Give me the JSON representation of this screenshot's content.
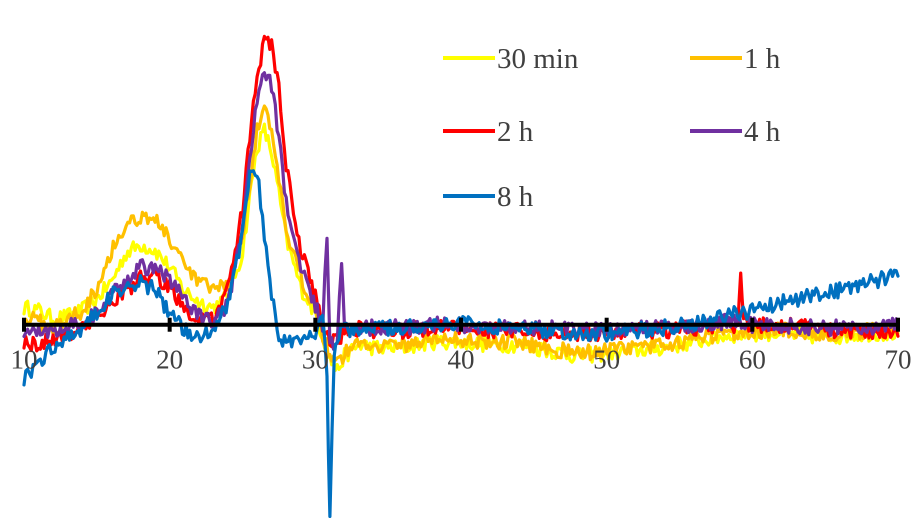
{
  "chart_data": {
    "type": "line",
    "title": "",
    "xlabel": "",
    "ylabel": "",
    "xlim": [
      10,
      70
    ],
    "ylim": [
      -7,
      11
    ],
    "x_ticks": [
      10,
      20,
      30,
      40,
      50,
      60,
      70
    ],
    "x_tick_labels": [
      "10",
      "20",
      "30",
      "40",
      "50",
      "60",
      "70"
    ],
    "grid": false,
    "legend_position": "top-right",
    "series": [
      {
        "name": "30 min",
        "color": "#FFFF00",
        "points": [
          [
            10,
            0.6
          ],
          [
            11,
            0.5
          ],
          [
            12,
            0.2
          ],
          [
            13,
            0.3
          ],
          [
            14,
            0.5
          ],
          [
            15,
            0.9
          ],
          [
            16,
            1.5
          ],
          [
            17,
            2.5
          ],
          [
            18,
            2.8
          ],
          [
            19,
            2.6
          ],
          [
            20,
            2.0
          ],
          [
            21,
            1.2
          ],
          [
            22,
            0.8
          ],
          [
            23,
            0.6
          ],
          [
            24,
            1.0
          ],
          [
            25,
            2.5
          ],
          [
            25.5,
            4.5
          ],
          [
            26,
            6.2
          ],
          [
            26.5,
            6.8
          ],
          [
            27,
            6.0
          ],
          [
            27.5,
            4.6
          ],
          [
            28,
            3.0
          ],
          [
            29,
            1.3
          ],
          [
            30,
            0.4
          ],
          [
            30.5,
            -0.4
          ],
          [
            31,
            -1.2
          ],
          [
            31.5,
            -1.6
          ],
          [
            32,
            -1.1
          ],
          [
            33,
            -0.7
          ],
          [
            34,
            -0.8
          ],
          [
            36,
            -0.8
          ],
          [
            38,
            -0.6
          ],
          [
            40,
            -0.6
          ],
          [
            42,
            -0.7
          ],
          [
            44,
            -0.7
          ],
          [
            46,
            -0.9
          ],
          [
            48,
            -1.1
          ],
          [
            50,
            -1.0
          ],
          [
            52,
            -0.9
          ],
          [
            54,
            -0.8
          ],
          [
            56,
            -0.6
          ],
          [
            58,
            -0.4
          ],
          [
            60,
            -0.3
          ],
          [
            62,
            -0.3
          ],
          [
            64,
            -0.4
          ],
          [
            66,
            -0.4
          ],
          [
            68,
            -0.3
          ],
          [
            70,
            -0.3
          ]
        ]
      },
      {
        "name": "1 h",
        "color": "#FFC000",
        "points": [
          [
            10,
            0.3
          ],
          [
            11,
            0.1
          ],
          [
            12,
            -0.1
          ],
          [
            13,
            0.2
          ],
          [
            14,
            0.5
          ],
          [
            15,
            1.3
          ],
          [
            16,
            2.6
          ],
          [
            17,
            3.5
          ],
          [
            18,
            3.8
          ],
          [
            19,
            3.7
          ],
          [
            20,
            3.0
          ],
          [
            21,
            2.0
          ],
          [
            22,
            1.5
          ],
          [
            23,
            1.2
          ],
          [
            24,
            1.4
          ],
          [
            25,
            3.2
          ],
          [
            25.5,
            5.0
          ],
          [
            26,
            6.8
          ],
          [
            26.5,
            7.5
          ],
          [
            27,
            6.8
          ],
          [
            27.5,
            5.0
          ],
          [
            28,
            3.2
          ],
          [
            29,
            1.6
          ],
          [
            30,
            0.7
          ],
          [
            30.5,
            -0.3
          ],
          [
            31,
            -1.0
          ],
          [
            31.5,
            -1.4
          ],
          [
            32,
            -1.0
          ],
          [
            33,
            -0.6
          ],
          [
            34,
            -0.7
          ],
          [
            36,
            -0.7
          ],
          [
            38,
            -0.5
          ],
          [
            40,
            -0.5
          ],
          [
            42,
            -0.6
          ],
          [
            44,
            -0.6
          ],
          [
            46,
            -0.8
          ],
          [
            48,
            -1.0
          ],
          [
            50,
            -0.9
          ],
          [
            52,
            -0.8
          ],
          [
            54,
            -0.7
          ],
          [
            56,
            -0.5
          ],
          [
            58,
            -0.3
          ],
          [
            60,
            -0.2
          ],
          [
            62,
            -0.2
          ],
          [
            64,
            -0.3
          ],
          [
            66,
            -0.3
          ],
          [
            68,
            -0.2
          ],
          [
            70,
            -0.2
          ]
        ]
      },
      {
        "name": "2 h",
        "color": "#FF0000",
        "points": [
          [
            10,
            -0.6
          ],
          [
            11,
            -0.7
          ],
          [
            12,
            -0.5
          ],
          [
            13,
            -0.3
          ],
          [
            14,
            -0.1
          ],
          [
            15,
            0.3
          ],
          [
            16,
            0.8
          ],
          [
            17,
            1.2
          ],
          [
            18,
            1.6
          ],
          [
            19,
            1.7
          ],
          [
            20,
            1.3
          ],
          [
            21,
            0.6
          ],
          [
            22,
            0.1
          ],
          [
            23,
            0.2
          ],
          [
            24,
            1.2
          ],
          [
            25,
            4.0
          ],
          [
            25.5,
            6.5
          ],
          [
            26,
            8.6
          ],
          [
            26.5,
            10.0
          ],
          [
            27,
            9.8
          ],
          [
            27.5,
            8.2
          ],
          [
            28,
            5.5
          ],
          [
            29,
            2.6
          ],
          [
            30,
            1.0
          ],
          [
            30.5,
            0.0
          ],
          [
            31,
            -0.5
          ],
          [
            31.5,
            -0.6
          ],
          [
            32,
            -0.3
          ],
          [
            33,
            -0.1
          ],
          [
            34,
            -0.2
          ],
          [
            36,
            -0.2
          ],
          [
            38,
            -0.1
          ],
          [
            40,
            -0.1
          ],
          [
            42,
            -0.2
          ],
          [
            44,
            -0.2
          ],
          [
            45,
            -0.4
          ],
          [
            46,
            -0.3
          ],
          [
            48,
            -0.3
          ],
          [
            50,
            -0.3
          ],
          [
            52,
            -0.2
          ],
          [
            54,
            -0.2
          ],
          [
            56,
            -0.1
          ],
          [
            58,
            0.0
          ],
          [
            59,
            0.0
          ],
          [
            59.2,
            1.6
          ],
          [
            59.4,
            0.0
          ],
          [
            60,
            0.0
          ],
          [
            62,
            0.0
          ],
          [
            64,
            -0.1
          ],
          [
            66,
            -0.2
          ],
          [
            68,
            -0.2
          ],
          [
            70,
            -0.4
          ]
        ]
      },
      {
        "name": "4 h",
        "color": "#7030A0",
        "points": [
          [
            10,
            -0.2
          ],
          [
            11,
            -0.3
          ],
          [
            12,
            -0.2
          ],
          [
            13,
            0.0
          ],
          [
            14,
            0.1
          ],
          [
            15,
            0.4
          ],
          [
            16,
            1.0
          ],
          [
            17,
            1.6
          ],
          [
            18,
            2.0
          ],
          [
            19,
            2.0
          ],
          [
            20,
            1.6
          ],
          [
            21,
            0.9
          ],
          [
            22,
            0.3
          ],
          [
            23,
            0.1
          ],
          [
            24,
            0.7
          ],
          [
            25,
            3.2
          ],
          [
            25.5,
            5.8
          ],
          [
            26,
            7.8
          ],
          [
            26.5,
            8.8
          ],
          [
            27,
            8.4
          ],
          [
            27.5,
            6.6
          ],
          [
            28,
            4.2
          ],
          [
            29,
            2.0
          ],
          [
            30,
            0.7
          ],
          [
            30.5,
            -0.2
          ],
          [
            30.8,
            3.2
          ],
          [
            31,
            -0.8
          ],
          [
            31.5,
            -0.4
          ],
          [
            31.8,
            2.1
          ],
          [
            32,
            -0.2
          ],
          [
            33,
            -0.1
          ],
          [
            34,
            -0.1
          ],
          [
            36,
            -0.1
          ],
          [
            38,
            0.0
          ],
          [
            40,
            0.0
          ],
          [
            42,
            -0.1
          ],
          [
            44,
            -0.1
          ],
          [
            46,
            -0.1
          ],
          [
            48,
            -0.2
          ],
          [
            50,
            -0.2
          ],
          [
            52,
            -0.1
          ],
          [
            54,
            -0.1
          ],
          [
            56,
            0.0
          ],
          [
            58,
            0.1
          ],
          [
            60,
            0.0
          ],
          [
            62,
            0.0
          ],
          [
            64,
            -0.1
          ],
          [
            66,
            -0.1
          ],
          [
            68,
            -0.1
          ],
          [
            70,
            0.0
          ]
        ]
      },
      {
        "name": "8 h",
        "color": "#0070C0",
        "points": [
          [
            10,
            -1.9
          ],
          [
            11,
            -1.3
          ],
          [
            12,
            -0.8
          ],
          [
            13,
            -0.4
          ],
          [
            14,
            -0.1
          ],
          [
            15,
            0.4
          ],
          [
            16,
            1.0
          ],
          [
            17,
            1.4
          ],
          [
            18,
            1.5
          ],
          [
            19,
            1.2
          ],
          [
            20,
            0.4
          ],
          [
            21,
            -0.2
          ],
          [
            22,
            -0.4
          ],
          [
            23,
            -0.1
          ],
          [
            24,
            0.8
          ],
          [
            25,
            3.1
          ],
          [
            25.5,
            5.2
          ],
          [
            26,
            5.4
          ],
          [
            26.5,
            3.0
          ],
          [
            27,
            1.0
          ],
          [
            27.5,
            -0.3
          ],
          [
            28,
            -0.7
          ],
          [
            29,
            -0.6
          ],
          [
            30,
            -0.3
          ],
          [
            30.5,
            0.5
          ],
          [
            30.8,
            -2.0
          ],
          [
            31,
            -6.7
          ],
          [
            31.3,
            -0.9
          ],
          [
            31.5,
            -0.4
          ],
          [
            32,
            -0.2
          ],
          [
            33,
            -0.2
          ],
          [
            34,
            -0.1
          ],
          [
            36,
            -0.1
          ],
          [
            38,
            0.0
          ],
          [
            40,
            0.1
          ],
          [
            42,
            -0.1
          ],
          [
            44,
            -0.1
          ],
          [
            46,
            -0.2
          ],
          [
            48,
            -0.3
          ],
          [
            50,
            -0.3
          ],
          [
            52,
            -0.2
          ],
          [
            54,
            -0.1
          ],
          [
            56,
            0.0
          ],
          [
            58,
            0.3
          ],
          [
            60,
            0.5
          ],
          [
            62,
            0.8
          ],
          [
            64,
            1.0
          ],
          [
            66,
            1.2
          ],
          [
            68,
            1.5
          ],
          [
            70,
            1.7
          ]
        ]
      }
    ]
  }
}
